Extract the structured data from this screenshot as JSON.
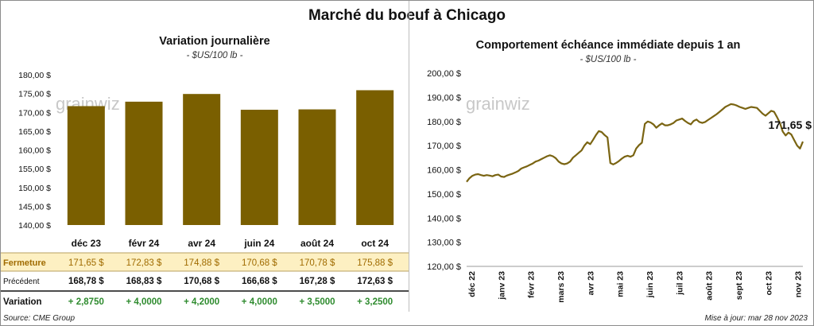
{
  "title": "Marché du boeuf à Chicago",
  "source": "Source: CME Group",
  "update": "Mise à jour: mar 28 nov 2023",
  "watermark_text": "grainwiz",
  "colors": {
    "bar": "#7a5f00",
    "line": "#7a6412",
    "highlight_row": "#fdf0c2",
    "highlight_label": "#a06b00",
    "positive": "#2e8b2e"
  },
  "chart_data": [
    {
      "type": "bar",
      "title": "Variation journalière",
      "subtitle": "- $US/100 lb -",
      "categories": [
        "déc 23",
        "févr 24",
        "avr 24",
        "juin 24",
        "août 24",
        "oct 24"
      ],
      "values": [
        171.65,
        172.83,
        174.88,
        170.68,
        170.78,
        175.88
      ],
      "ylim": [
        140,
        180
      ],
      "yticks": [
        "140,00 $",
        "145,00 $",
        "150,00 $",
        "155,00 $",
        "160,00 $",
        "165,00 $",
        "170,00 $",
        "175,00 $",
        "180,00 $"
      ],
      "grid": false,
      "table": [
        {
          "label": "Fermeture",
          "cells": [
            "171,65  $",
            "172,83  $",
            "174,88  $",
            "170,68  $",
            "170,78  $",
            "175,88  $"
          ]
        },
        {
          "label": "Précédent",
          "cells": [
            "168,78  $",
            "168,83  $",
            "170,68  $",
            "166,68  $",
            "167,28  $",
            "172,63  $"
          ]
        },
        {
          "label": "Variation",
          "cells": [
            "+ 2,8750",
            "+ 4,0000",
            "+ 4,2000",
            "+ 4,0000",
            "+ 3,5000",
            "+ 3,2500"
          ]
        }
      ]
    },
    {
      "type": "line",
      "title": "Comportement  échéance immédiate depuis 1 an",
      "subtitle": "- $US/100 lb -",
      "ylim": [
        120,
        200
      ],
      "yticks": [
        "120,00 $",
        "130,00 $",
        "140,00 $",
        "150,00 $",
        "160,00 $",
        "170,00 $",
        "180,00 $",
        "190,00 $",
        "200,00 $"
      ],
      "xticks": [
        "déc 22",
        "janv 23",
        "févr 23",
        "mars 23",
        "avr 23",
        "mai 23",
        "juin 23",
        "juil 23",
        "août 23",
        "sept 23",
        "oct 23",
        "nov 23"
      ],
      "last_label": "171,65 $",
      "values": [
        155,
        156.5,
        157.5,
        158,
        158.2,
        157.8,
        157.5,
        157.8,
        157.6,
        157.3,
        157.8,
        158,
        157.2,
        157,
        157.6,
        158,
        158.4,
        158.9,
        159.5,
        160.5,
        161,
        161.4,
        162,
        162.6,
        163.4,
        163.8,
        164.4,
        165,
        165.6,
        166,
        165.6,
        164.8,
        163.4,
        162.6,
        162.3,
        162.6,
        163.4,
        165,
        166,
        167,
        168,
        170,
        171.4,
        170.6,
        172.4,
        174.4,
        176,
        175.6,
        174.4,
        173.4,
        162.8,
        162.2,
        162.8,
        163.6,
        164.6,
        165.4,
        165.8,
        165.4,
        166,
        168.8,
        170.2,
        171.2,
        179,
        180,
        179.6,
        178.8,
        177.4,
        178.4,
        179.2,
        178.4,
        178.4,
        178.8,
        179.4,
        180.4,
        180.8,
        181.2,
        180.2,
        179.4,
        178.8,
        180.2,
        180.8,
        179.8,
        179.4,
        179.8,
        180.6,
        181.4,
        182.2,
        183,
        184,
        185,
        186,
        186.6,
        187.2,
        187,
        186.6,
        186,
        185.6,
        185.2,
        185.6,
        186,
        185.8,
        185.6,
        184.4,
        183.2,
        182.4,
        183.4,
        184.4,
        184,
        181.8,
        179.4,
        175.8,
        174.2,
        175.4,
        174.6,
        172.2,
        170,
        168.8,
        171.65
      ]
    }
  ]
}
